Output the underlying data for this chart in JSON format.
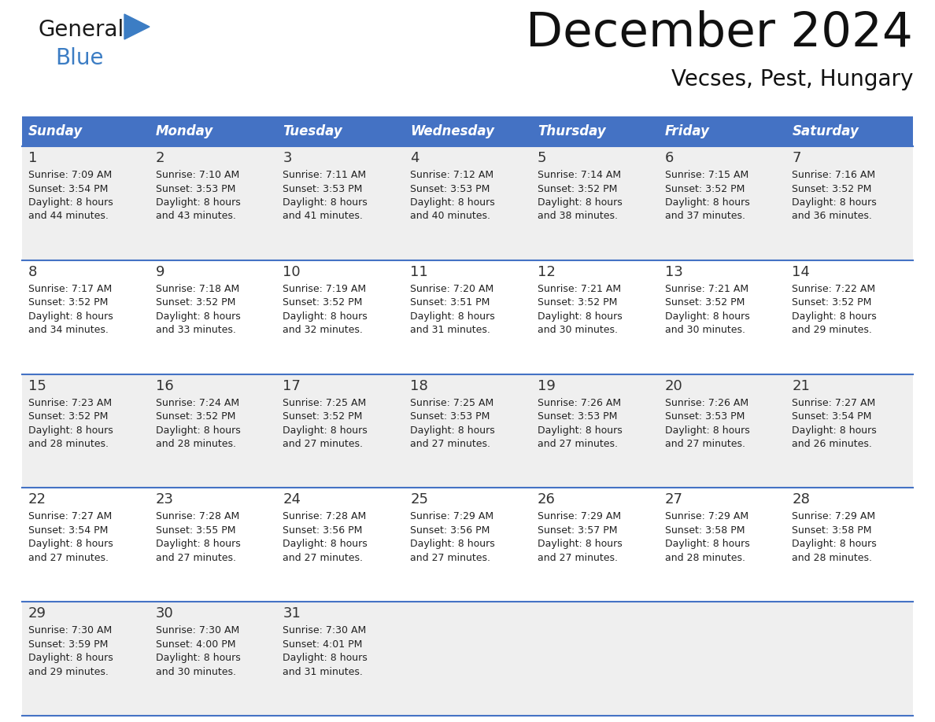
{
  "title": "December 2024",
  "subtitle": "Vecses, Pest, Hungary",
  "days_of_week": [
    "Sunday",
    "Monday",
    "Tuesday",
    "Wednesday",
    "Thursday",
    "Friday",
    "Saturday"
  ],
  "header_bg": "#4472C4",
  "header_text": "#FFFFFF",
  "row_bg_odd": "#EFEFEF",
  "row_bg_even": "#FFFFFF",
  "cell_text": "#222222",
  "border_color": "#4472C4",
  "title_color": "#111111",
  "subtitle_color": "#111111",
  "logo_general_color": "#1a1a1a",
  "logo_blue_color": "#3C7DC4",
  "weeks": [
    [
      {
        "day": 1,
        "sunrise": "7:09 AM",
        "sunset": "3:54 PM",
        "daylight_hrs": 8,
        "daylight_min": 44
      },
      {
        "day": 2,
        "sunrise": "7:10 AM",
        "sunset": "3:53 PM",
        "daylight_hrs": 8,
        "daylight_min": 43
      },
      {
        "day": 3,
        "sunrise": "7:11 AM",
        "sunset": "3:53 PM",
        "daylight_hrs": 8,
        "daylight_min": 41
      },
      {
        "day": 4,
        "sunrise": "7:12 AM",
        "sunset": "3:53 PM",
        "daylight_hrs": 8,
        "daylight_min": 40
      },
      {
        "day": 5,
        "sunrise": "7:14 AM",
        "sunset": "3:52 PM",
        "daylight_hrs": 8,
        "daylight_min": 38
      },
      {
        "day": 6,
        "sunrise": "7:15 AM",
        "sunset": "3:52 PM",
        "daylight_hrs": 8,
        "daylight_min": 37
      },
      {
        "day": 7,
        "sunrise": "7:16 AM",
        "sunset": "3:52 PM",
        "daylight_hrs": 8,
        "daylight_min": 36
      }
    ],
    [
      {
        "day": 8,
        "sunrise": "7:17 AM",
        "sunset": "3:52 PM",
        "daylight_hrs": 8,
        "daylight_min": 34
      },
      {
        "day": 9,
        "sunrise": "7:18 AM",
        "sunset": "3:52 PM",
        "daylight_hrs": 8,
        "daylight_min": 33
      },
      {
        "day": 10,
        "sunrise": "7:19 AM",
        "sunset": "3:52 PM",
        "daylight_hrs": 8,
        "daylight_min": 32
      },
      {
        "day": 11,
        "sunrise": "7:20 AM",
        "sunset": "3:51 PM",
        "daylight_hrs": 8,
        "daylight_min": 31
      },
      {
        "day": 12,
        "sunrise": "7:21 AM",
        "sunset": "3:52 PM",
        "daylight_hrs": 8,
        "daylight_min": 30
      },
      {
        "day": 13,
        "sunrise": "7:21 AM",
        "sunset": "3:52 PM",
        "daylight_hrs": 8,
        "daylight_min": 30
      },
      {
        "day": 14,
        "sunrise": "7:22 AM",
        "sunset": "3:52 PM",
        "daylight_hrs": 8,
        "daylight_min": 29
      }
    ],
    [
      {
        "day": 15,
        "sunrise": "7:23 AM",
        "sunset": "3:52 PM",
        "daylight_hrs": 8,
        "daylight_min": 28
      },
      {
        "day": 16,
        "sunrise": "7:24 AM",
        "sunset": "3:52 PM",
        "daylight_hrs": 8,
        "daylight_min": 28
      },
      {
        "day": 17,
        "sunrise": "7:25 AM",
        "sunset": "3:52 PM",
        "daylight_hrs": 8,
        "daylight_min": 27
      },
      {
        "day": 18,
        "sunrise": "7:25 AM",
        "sunset": "3:53 PM",
        "daylight_hrs": 8,
        "daylight_min": 27
      },
      {
        "day": 19,
        "sunrise": "7:26 AM",
        "sunset": "3:53 PM",
        "daylight_hrs": 8,
        "daylight_min": 27
      },
      {
        "day": 20,
        "sunrise": "7:26 AM",
        "sunset": "3:53 PM",
        "daylight_hrs": 8,
        "daylight_min": 27
      },
      {
        "day": 21,
        "sunrise": "7:27 AM",
        "sunset": "3:54 PM",
        "daylight_hrs": 8,
        "daylight_min": 26
      }
    ],
    [
      {
        "day": 22,
        "sunrise": "7:27 AM",
        "sunset": "3:54 PM",
        "daylight_hrs": 8,
        "daylight_min": 27
      },
      {
        "day": 23,
        "sunrise": "7:28 AM",
        "sunset": "3:55 PM",
        "daylight_hrs": 8,
        "daylight_min": 27
      },
      {
        "day": 24,
        "sunrise": "7:28 AM",
        "sunset": "3:56 PM",
        "daylight_hrs": 8,
        "daylight_min": 27
      },
      {
        "day": 25,
        "sunrise": "7:29 AM",
        "sunset": "3:56 PM",
        "daylight_hrs": 8,
        "daylight_min": 27
      },
      {
        "day": 26,
        "sunrise": "7:29 AM",
        "sunset": "3:57 PM",
        "daylight_hrs": 8,
        "daylight_min": 27
      },
      {
        "day": 27,
        "sunrise": "7:29 AM",
        "sunset": "3:58 PM",
        "daylight_hrs": 8,
        "daylight_min": 28
      },
      {
        "day": 28,
        "sunrise": "7:29 AM",
        "sunset": "3:58 PM",
        "daylight_hrs": 8,
        "daylight_min": 28
      }
    ],
    [
      {
        "day": 29,
        "sunrise": "7:30 AM",
        "sunset": "3:59 PM",
        "daylight_hrs": 8,
        "daylight_min": 29
      },
      {
        "day": 30,
        "sunrise": "7:30 AM",
        "sunset": "4:00 PM",
        "daylight_hrs": 8,
        "daylight_min": 30
      },
      {
        "day": 31,
        "sunrise": "7:30 AM",
        "sunset": "4:01 PM",
        "daylight_hrs": 8,
        "daylight_min": 31
      },
      null,
      null,
      null,
      null
    ]
  ]
}
